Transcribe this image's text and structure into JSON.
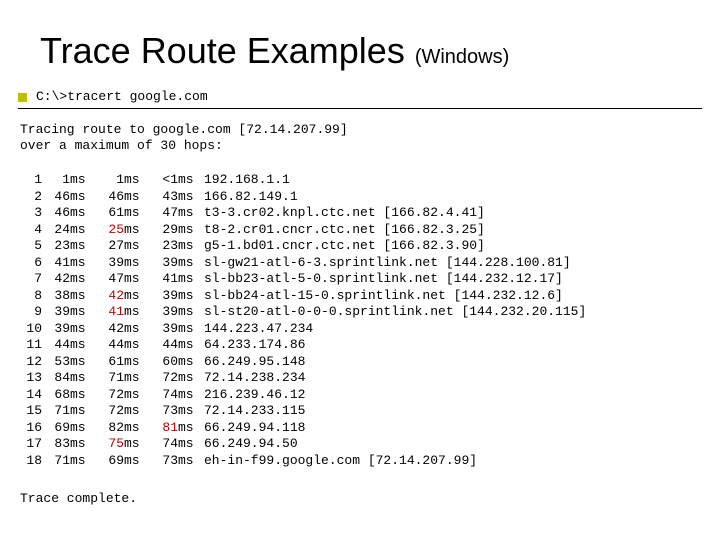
{
  "title_main": "Trace Route Examples ",
  "title_sub": "(Windows)",
  "command": "C:\\>tracert google.com",
  "intro_line1": "Tracing route to google.com [72.14.207.99]",
  "intro_line2": "over a maximum of 30 hops:",
  "ms_unit": "ms",
  "footer": "Trace complete.",
  "red_color": "#c00000",
  "hops": [
    {
      "i": "1",
      "a": "1",
      "ar": false,
      "b": "1",
      "br": false,
      "c": "<1",
      "cr": false,
      "host": "192.168.1.1"
    },
    {
      "i": "2",
      "a": "46",
      "ar": false,
      "b": "46",
      "br": false,
      "c": "43",
      "cr": false,
      "host": "166.82.149.1"
    },
    {
      "i": "3",
      "a": "46",
      "ar": false,
      "b": "61",
      "br": false,
      "c": "47",
      "cr": false,
      "host": "t3-3.cr02.knpl.ctc.net [166.82.4.41]"
    },
    {
      "i": "4",
      "a": "24",
      "ar": false,
      "b": "25",
      "br": true,
      "c": "29",
      "cr": false,
      "host": "t8-2.cr01.cncr.ctc.net [166.82.3.25]"
    },
    {
      "i": "5",
      "a": "23",
      "ar": false,
      "b": "27",
      "br": false,
      "c": "23",
      "cr": false,
      "host": "g5-1.bd01.cncr.ctc.net [166.82.3.90]"
    },
    {
      "i": "6",
      "a": "41",
      "ar": false,
      "b": "39",
      "br": false,
      "c": "39",
      "cr": false,
      "host": "sl-gw21-atl-6-3.sprintlink.net [144.228.100.81]"
    },
    {
      "i": "7",
      "a": "42",
      "ar": false,
      "b": "47",
      "br": false,
      "c": "41",
      "cr": false,
      "host": "sl-bb23-atl-5-0.sprintlink.net [144.232.12.17]"
    },
    {
      "i": "8",
      "a": "38",
      "ar": false,
      "b": "42",
      "br": true,
      "c": "39",
      "cr": false,
      "host": "sl-bb24-atl-15-0.sprintlink.net [144.232.12.6]"
    },
    {
      "i": "9",
      "a": "39",
      "ar": false,
      "b": "41",
      "br": true,
      "c": "39",
      "cr": false,
      "host": "sl-st20-atl-0-0-0.sprintlink.net [144.232.20.115]"
    },
    {
      "i": "10",
      "a": "39",
      "ar": false,
      "b": "42",
      "br": false,
      "c": "39",
      "cr": false,
      "host": "144.223.47.234"
    },
    {
      "i": "11",
      "a": "44",
      "ar": false,
      "b": "44",
      "br": false,
      "c": "44",
      "cr": false,
      "host": "64.233.174.86"
    },
    {
      "i": "12",
      "a": "53",
      "ar": false,
      "b": "61",
      "br": false,
      "c": "60",
      "cr": false,
      "host": "66.249.95.148"
    },
    {
      "i": "13",
      "a": "84",
      "ar": false,
      "b": "71",
      "br": false,
      "c": "72",
      "cr": false,
      "host": "72.14.238.234"
    },
    {
      "i": "14",
      "a": "68",
      "ar": false,
      "b": "72",
      "br": false,
      "c": "74",
      "cr": false,
      "host": "216.239.46.12"
    },
    {
      "i": "15",
      "a": "71",
      "ar": false,
      "b": "72",
      "br": false,
      "c": "73",
      "cr": false,
      "host": "72.14.233.115"
    },
    {
      "i": "16",
      "a": "69",
      "ar": false,
      "b": "82",
      "br": false,
      "c": "81",
      "cr": true,
      "host": "66.249.94.118"
    },
    {
      "i": "17",
      "a": "83",
      "ar": false,
      "b": "75",
      "br": true,
      "c": "74",
      "cr": false,
      "host": "66.249.94.50"
    },
    {
      "i": "18",
      "a": "71",
      "ar": false,
      "b": "69",
      "br": false,
      "c": "73",
      "cr": false,
      "host": "eh-in-f99.google.com [72.14.207.99]"
    }
  ]
}
